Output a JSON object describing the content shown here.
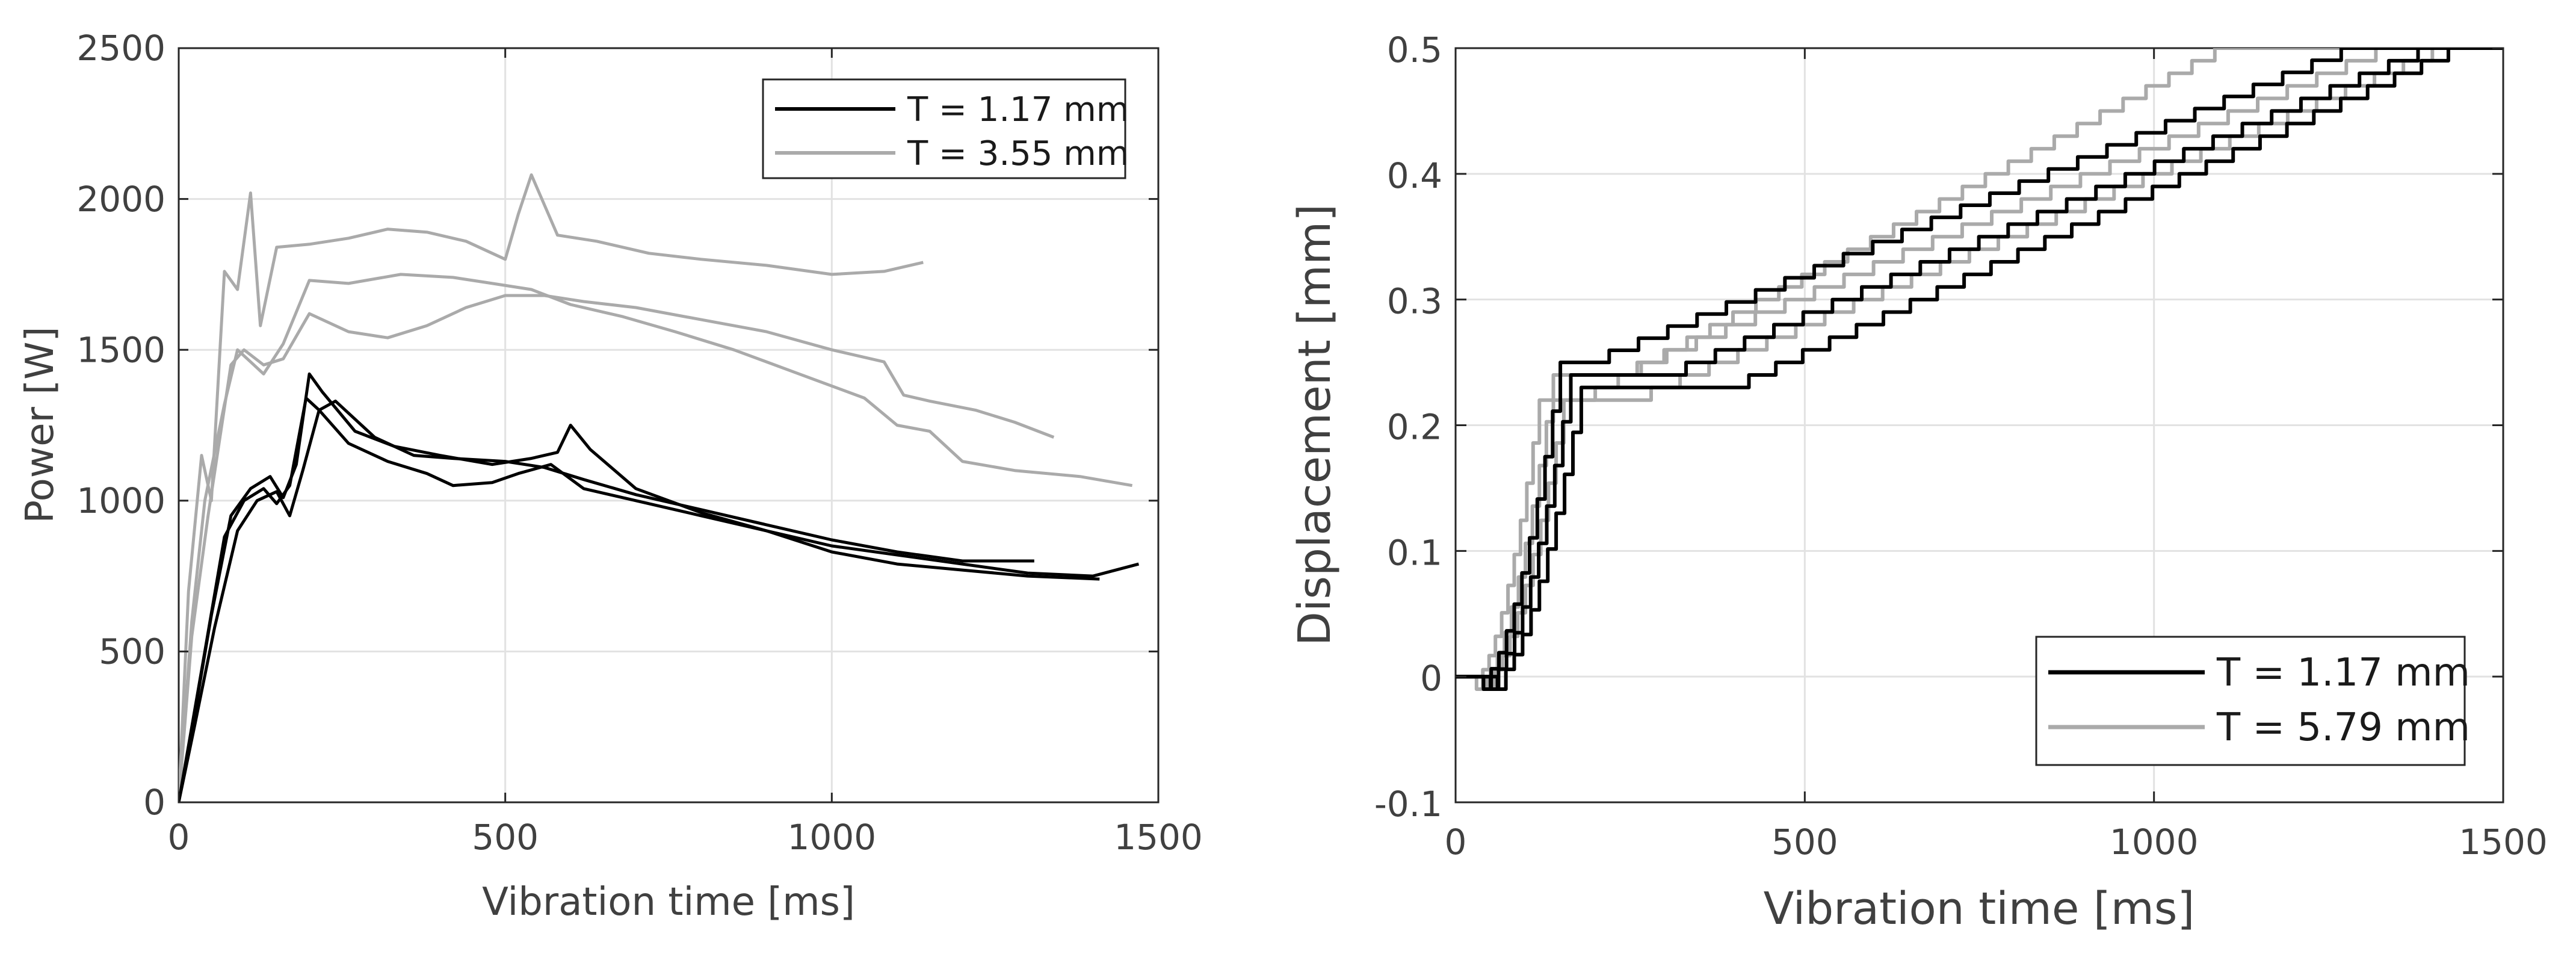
{
  "chart_data": [
    {
      "type": "line",
      "title": "",
      "xlabel": "Vibration time [ms]",
      "ylabel": "Power [W]",
      "xlim": [
        0,
        1500
      ],
      "ylim": [
        0,
        2500
      ],
      "xticks": [
        0,
        500,
        1000,
        1500
      ],
      "yticks": [
        0,
        500,
        1000,
        1500,
        2000,
        2500
      ],
      "xtick_labels": [
        "0",
        "500",
        "1000",
        "1500"
      ],
      "ytick_labels": [
        "0",
        "500",
        "1000",
        "1500",
        "2000",
        "2500"
      ],
      "grid": true,
      "legend_position": "top-right",
      "legend": [
        {
          "label": "T = 1.17 mm",
          "color": "#000000"
        },
        {
          "label": "T = 3.55 mm",
          "color": "#aaaaaa"
        }
      ],
      "series": [
        {
          "name": "T = 1.17 mm",
          "color": "#000000",
          "points": [
            [
              0,
              0
            ],
            [
              20,
              250
            ],
            [
              40,
              500
            ],
            [
              70,
              880
            ],
            [
              100,
              1000
            ],
            [
              130,
              1040
            ],
            [
              150,
              990
            ],
            [
              170,
              1050
            ],
            [
              195,
              1340
            ],
            [
              215,
              1300
            ],
            [
              260,
              1190
            ],
            [
              320,
              1130
            ],
            [
              380,
              1090
            ],
            [
              420,
              1050
            ],
            [
              480,
              1060
            ],
            [
              520,
              1090
            ],
            [
              570,
              1120
            ],
            [
              620,
              1040
            ],
            [
              700,
              1000
            ],
            [
              800,
              950
            ],
            [
              900,
              900
            ],
            [
              1000,
              850
            ],
            [
              1100,
              820
            ],
            [
              1200,
              790
            ],
            [
              1300,
              760
            ],
            [
              1400,
              750
            ],
            [
              1470,
              790
            ]
          ]
        },
        {
          "name": "T = 1.17 mm",
          "color": "#000000",
          "points": [
            [
              0,
              0
            ],
            [
              25,
              300
            ],
            [
              50,
              620
            ],
            [
              80,
              950
            ],
            [
              110,
              1040
            ],
            [
              140,
              1080
            ],
            [
              160,
              1010
            ],
            [
              180,
              1120
            ],
            [
              200,
              1420
            ],
            [
              220,
              1360
            ],
            [
              270,
              1230
            ],
            [
              330,
              1180
            ],
            [
              400,
              1150
            ],
            [
              480,
              1120
            ],
            [
              540,
              1140
            ],
            [
              580,
              1160
            ],
            [
              600,
              1250
            ],
            [
              630,
              1170
            ],
            [
              700,
              1040
            ],
            [
              800,
              960
            ],
            [
              900,
              900
            ],
            [
              1000,
              830
            ],
            [
              1100,
              790
            ],
            [
              1200,
              770
            ],
            [
              1300,
              750
            ],
            [
              1410,
              740
            ]
          ]
        },
        {
          "name": "T = 1.17 mm",
          "color": "#000000",
          "points": [
            [
              0,
              0
            ],
            [
              25,
              260
            ],
            [
              55,
              580
            ],
            [
              90,
              900
            ],
            [
              120,
              1000
            ],
            [
              150,
              1030
            ],
            [
              170,
              950
            ],
            [
              190,
              1100
            ],
            [
              215,
              1300
            ],
            [
              240,
              1330
            ],
            [
              300,
              1210
            ],
            [
              360,
              1150
            ],
            [
              420,
              1140
            ],
            [
              500,
              1130
            ],
            [
              560,
              1110
            ],
            [
              620,
              1070
            ],
            [
              700,
              1020
            ],
            [
              800,
              970
            ],
            [
              900,
              920
            ],
            [
              1000,
              870
            ],
            [
              1100,
              830
            ],
            [
              1200,
              800
            ],
            [
              1310,
              800
            ]
          ]
        },
        {
          "name": "T = 3.55 mm",
          "color": "#aaaaaa",
          "points": [
            [
              0,
              0
            ],
            [
              15,
              700
            ],
            [
              35,
              1150
            ],
            [
              50,
              1000
            ],
            [
              70,
              1760
            ],
            [
              90,
              1700
            ],
            [
              110,
              2020
            ],
            [
              125,
              1580
            ],
            [
              150,
              1840
            ],
            [
              200,
              1850
            ],
            [
              260,
              1870
            ],
            [
              320,
              1900
            ],
            [
              380,
              1890
            ],
            [
              440,
              1860
            ],
            [
              500,
              1800
            ],
            [
              520,
              1950
            ],
            [
              540,
              2080
            ],
            [
              580,
              1880
            ],
            [
              640,
              1860
            ],
            [
              720,
              1820
            ],
            [
              800,
              1800
            ],
            [
              900,
              1780
            ],
            [
              1000,
              1750
            ],
            [
              1080,
              1760
            ],
            [
              1140,
              1790
            ]
          ]
        },
        {
          "name": "T = 3.55 mm",
          "color": "#aaaaaa",
          "points": [
            [
              0,
              0
            ],
            [
              20,
              600
            ],
            [
              40,
              1000
            ],
            [
              70,
              1320
            ],
            [
              90,
              1500
            ],
            [
              110,
              1460
            ],
            [
              130,
              1420
            ],
            [
              160,
              1520
            ],
            [
              200,
              1730
            ],
            [
              260,
              1720
            ],
            [
              340,
              1750
            ],
            [
              420,
              1740
            ],
            [
              480,
              1720
            ],
            [
              540,
              1700
            ],
            [
              600,
              1650
            ],
            [
              680,
              1610
            ],
            [
              760,
              1560
            ],
            [
              850,
              1500
            ],
            [
              950,
              1420
            ],
            [
              1050,
              1340
            ],
            [
              1100,
              1250
            ],
            [
              1150,
              1230
            ],
            [
              1200,
              1130
            ],
            [
              1280,
              1100
            ],
            [
              1380,
              1080
            ],
            [
              1460,
              1050
            ]
          ]
        },
        {
          "name": "T = 3.55 mm",
          "color": "#aaaaaa",
          "points": [
            [
              0,
              0
            ],
            [
              20,
              550
            ],
            [
              45,
              950
            ],
            [
              80,
              1450
            ],
            [
              100,
              1500
            ],
            [
              130,
              1450
            ],
            [
              160,
              1470
            ],
            [
              200,
              1620
            ],
            [
              260,
              1560
            ],
            [
              320,
              1540
            ],
            [
              380,
              1580
            ],
            [
              440,
              1640
            ],
            [
              500,
              1680
            ],
            [
              560,
              1680
            ],
            [
              620,
              1660
            ],
            [
              700,
              1640
            ],
            [
              800,
              1600
            ],
            [
              900,
              1560
            ],
            [
              1000,
              1500
            ],
            [
              1080,
              1460
            ],
            [
              1110,
              1350
            ],
            [
              1150,
              1330
            ],
            [
              1220,
              1300
            ],
            [
              1280,
              1260
            ],
            [
              1340,
              1210
            ]
          ]
        }
      ]
    },
    {
      "type": "line",
      "title": "",
      "xlabel": "Vibration time [ms]",
      "ylabel": "Displacement [mm]",
      "xlim": [
        0,
        1500
      ],
      "ylim": [
        -0.1,
        0.5
      ],
      "xticks": [
        0,
        500,
        1000,
        1500
      ],
      "yticks": [
        -0.1,
        0,
        0.1,
        0.2,
        0.3,
        0.4,
        0.5
      ],
      "xtick_labels": [
        "0",
        "500",
        "1000",
        "1500"
      ],
      "ytick_labels": [
        "-0.1",
        "0",
        "0.1",
        "0.2",
        "0.3",
        "0.4",
        "0.5"
      ],
      "grid": true,
      "legend_position": "bottom-right",
      "legend": [
        {
          "label": "T = 1.17 mm",
          "color": "#000000"
        },
        {
          "label": "T = 5.79 mm",
          "color": "#aaaaaa"
        }
      ],
      "series": [
        {
          "name": "T = 1.17 mm",
          "color": "#000000",
          "plateau": {
            "start": 150,
            "y": 0.25,
            "end": 220
          },
          "rise": {
            "start": 40,
            "end": 150
          },
          "slope_end": [
            1310,
            0.5
          ],
          "steps": 26
        },
        {
          "name": "T = 1.17 mm",
          "color": "#000000",
          "plateau": {
            "start": 165,
            "y": 0.24,
            "end": 330
          },
          "rise": {
            "start": 50,
            "end": 165
          },
          "slope_end": [
            1420,
            0.5
          ],
          "steps": 26
        },
        {
          "name": "T = 1.17 mm",
          "color": "#000000",
          "plateau": {
            "start": 180,
            "y": 0.23,
            "end": 420
          },
          "rise": {
            "start": 60,
            "end": 180
          },
          "slope_end": [
            1460,
            0.5
          ],
          "steps": 27
        },
        {
          "name": "T = 5.79 mm",
          "color": "#aaaaaa",
          "plateau": {
            "start": 120,
            "y": 0.22,
            "end": 200
          },
          "rise": {
            "start": 30,
            "end": 120
          },
          "slope_end": [
            1120,
            0.5
          ],
          "steps": 28
        },
        {
          "name": "T = 5.79 mm",
          "color": "#aaaaaa",
          "plateau": {
            "start": 140,
            "y": 0.24,
            "end": 260
          },
          "rise": {
            "start": 40,
            "end": 140
          },
          "slope_end": [
            1360,
            0.5
          ],
          "steps": 26
        },
        {
          "name": "T = 5.79 mm",
          "color": "#aaaaaa",
          "plateau": {
            "start": 155,
            "y": 0.22,
            "end": 280
          },
          "rise": {
            "start": 45,
            "end": 155
          },
          "slope_end": [
            1440,
            0.5
          ],
          "steps": 28
        }
      ]
    }
  ]
}
